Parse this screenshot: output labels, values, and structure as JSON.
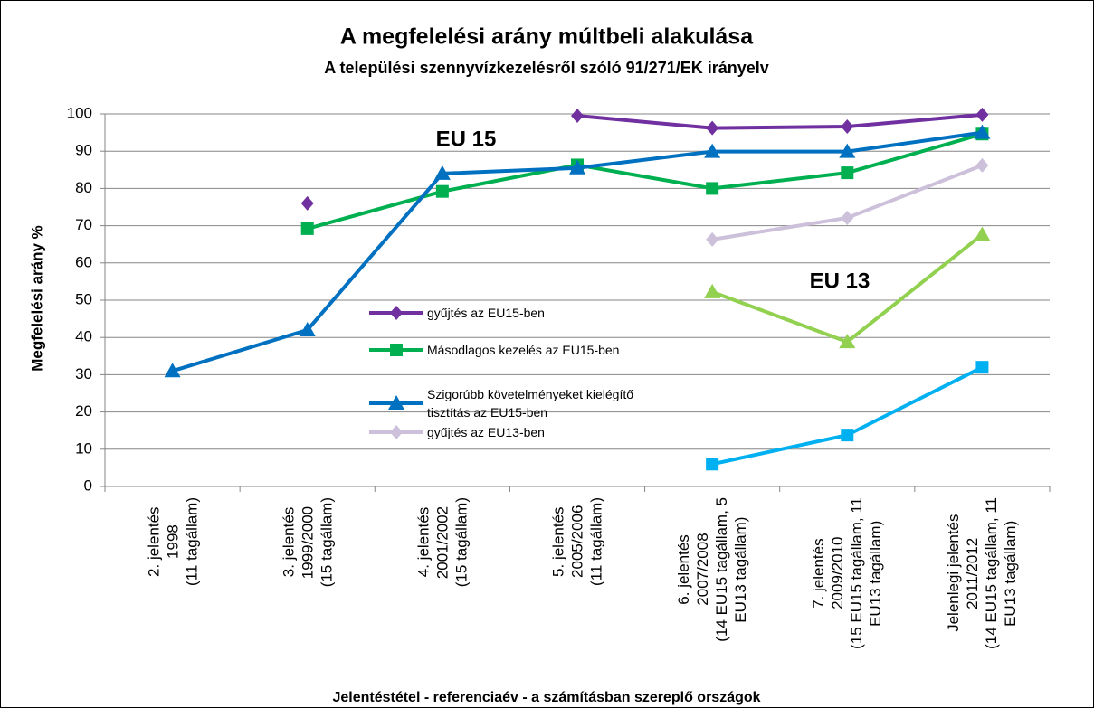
{
  "chart_data": {
    "type": "line",
    "title": "A megfelelési arány múltbeli alakulása",
    "subtitle": "A települési szennyvízkezelésről szóló 91/271/EK irányelv",
    "y_label": "Megfelelési arány %",
    "x_label": "Jelentéstétel - referenciaév - a számításban  szereplő országok",
    "annotations": [
      "EU 15",
      "EU 13"
    ],
    "categories": [
      "2. jelentés\n1998\n(11 tagállam)",
      "3. jelentés\n1999/2000\n(15 tagállam)",
      "4. jelentés\n2001/2002\n(15 tagállam)",
      "5. jelentés\n2005/2006\n(11 tagállam)",
      "6. jelentés\n2007/2008\n(14 EU15 tagállam, 5\nEU13 tagállam)",
      "7. jelentés\n2009/2010\n(15 EU15 tagállam, 11\nEU13 tagállam)",
      "Jelenlegi jelentés\n2011/2012\n(14 EU15 tagállam, 11\nEU13 tagállam)"
    ],
    "series": [
      {
        "name": "gyűjtés az EU15-ben",
        "color": "#7030a0",
        "marker": "diamond",
        "values": [
          null,
          76,
          null,
          99.5,
          96.2,
          96.6,
          99.8
        ]
      },
      {
        "name": "Másodlagos kezelés az EU15-ben",
        "color": "#00b050",
        "marker": "square",
        "values": [
          null,
          69.2,
          79.2,
          86.3,
          80,
          84.2,
          94.6
        ]
      },
      {
        "name": "Szigorúbb követelményeket kielégítő tisztítás az EU15-ben",
        "color": "#0070c0",
        "marker": "triangle",
        "values": [
          31,
          42,
          84,
          85.5,
          89.9,
          89.9,
          95
        ]
      },
      {
        "name": "gyűjtés az EU13-ben",
        "color": "#ccc0da",
        "marker": "diamond",
        "values": [
          null,
          null,
          null,
          null,
          66.3,
          72.1,
          86.2
        ]
      },
      {
        "color": "#92d050",
        "marker": "triangle",
        "values": [
          null,
          null,
          null,
          null,
          52.2,
          38.8,
          67.6
        ]
      },
      {
        "color": "#00b0f0",
        "marker": "square",
        "values": [
          null,
          null,
          null,
          null,
          6,
          13.8,
          32
        ]
      }
    ],
    "ylim": [
      0,
      100
    ],
    "yticks": [
      0,
      10,
      20,
      30,
      40,
      50,
      60,
      70,
      80,
      90,
      100
    ],
    "grid": true
  }
}
